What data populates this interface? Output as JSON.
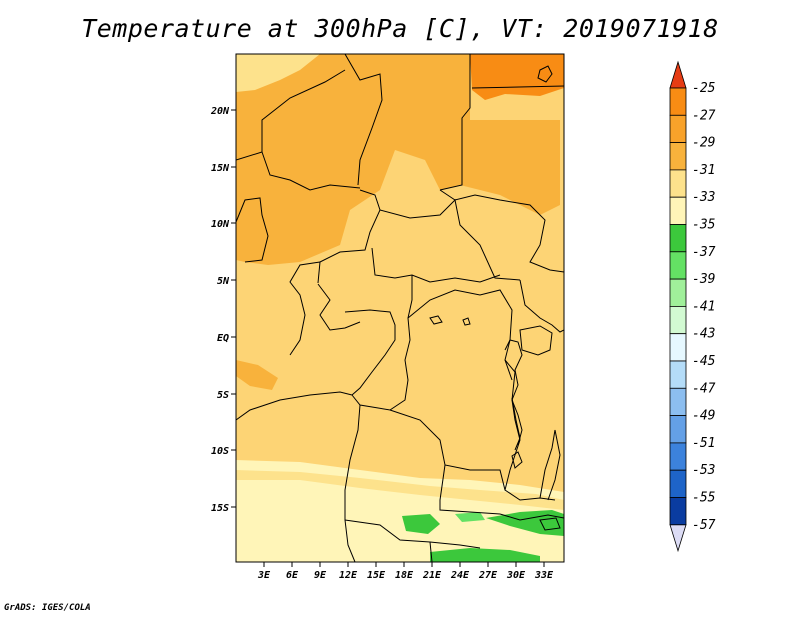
{
  "title": "Temperature at 300hPa [C], VT: 2019071918",
  "credit": "GrADS: IGES/COLA",
  "map": {
    "lat_labels": [
      "20N",
      "15N",
      "10N",
      "5N",
      "EQ",
      "5S",
      "10S",
      "15S"
    ],
    "lon_labels": [
      "3E",
      "6E",
      "9E",
      "12E",
      "15E",
      "18E",
      "21E",
      "24E",
      "27E",
      "30E",
      "33E"
    ],
    "region": "Central Africa"
  },
  "colorbar": {
    "labels": [
      "-25",
      "-27",
      "-29",
      "-31",
      "-33",
      "-35",
      "-37",
      "-39",
      "-41",
      "-43",
      "-45",
      "-47",
      "-49",
      "-51",
      "-53",
      "-55",
      "-57"
    ],
    "colors": [
      "#f06400",
      "#f88c14",
      "#f8a22a",
      "#f8b23c",
      "#fde28c",
      "#fff5b8",
      "#3cc83c",
      "#64e164",
      "#a0f09a",
      "#d2fad2",
      "#e6f8ff",
      "#b4dcf8",
      "#8cbef0",
      "#64a0e6",
      "#3c82dc",
      "#1e64c8",
      "#0a3ca0",
      "#0a1464",
      "#dcdcf5"
    ],
    "top_arrow_color": "#e63c14",
    "bottom_arrow_color": "#dcdcf5"
  }
}
